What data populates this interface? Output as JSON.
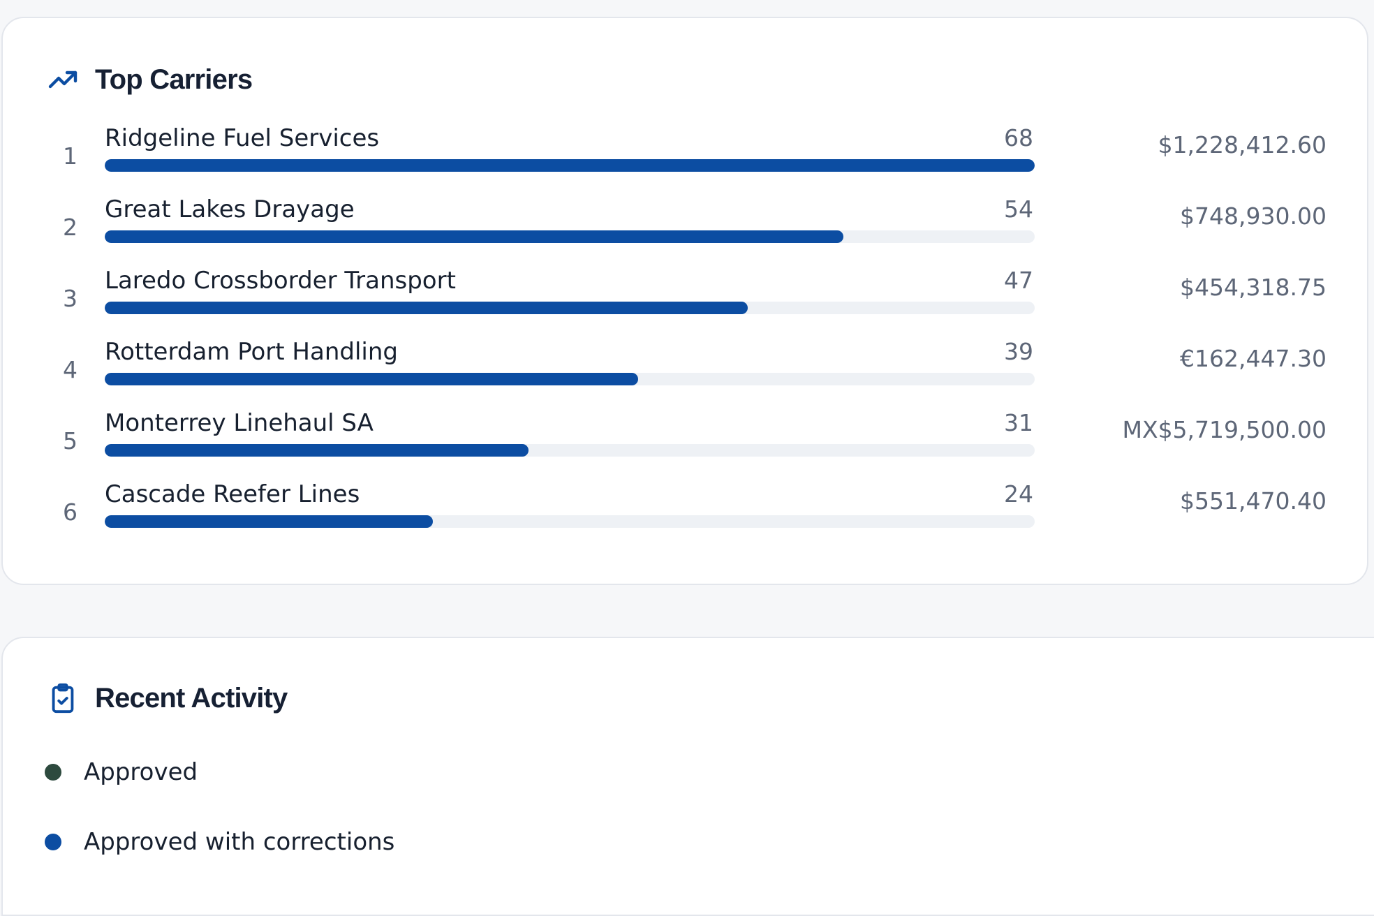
{
  "top_carriers": {
    "title": "Top Carriers",
    "icon": "trending-up-icon",
    "accent_color": "#0c4da2",
    "max_count": 68,
    "rows": [
      {
        "rank": "1",
        "name": "Ridgeline Fuel Services",
        "count": 68,
        "amount": "$1,228,412.60"
      },
      {
        "rank": "2",
        "name": "Great Lakes Drayage",
        "count": 54,
        "amount": "$748,930.00"
      },
      {
        "rank": "3",
        "name": "Laredo Crossborder Transport",
        "count": 47,
        "amount": "$454,318.75"
      },
      {
        "rank": "4",
        "name": "Rotterdam Port Handling",
        "count": 39,
        "amount": "€162,447.30"
      },
      {
        "rank": "5",
        "name": "Monterrey Linehaul SA",
        "count": 31,
        "amount": "MX$5,719,500.00"
      },
      {
        "rank": "6",
        "name": "Cascade Reefer Lines",
        "count": 24,
        "amount": "$551,470.40"
      }
    ]
  },
  "recent_activity": {
    "title": "Recent Activity",
    "icon": "clipboard-check-icon",
    "items": [
      {
        "label": "Approved",
        "color": "#2d4a3e"
      },
      {
        "label": "Approved with corrections",
        "color": "#0c4da2"
      }
    ]
  }
}
